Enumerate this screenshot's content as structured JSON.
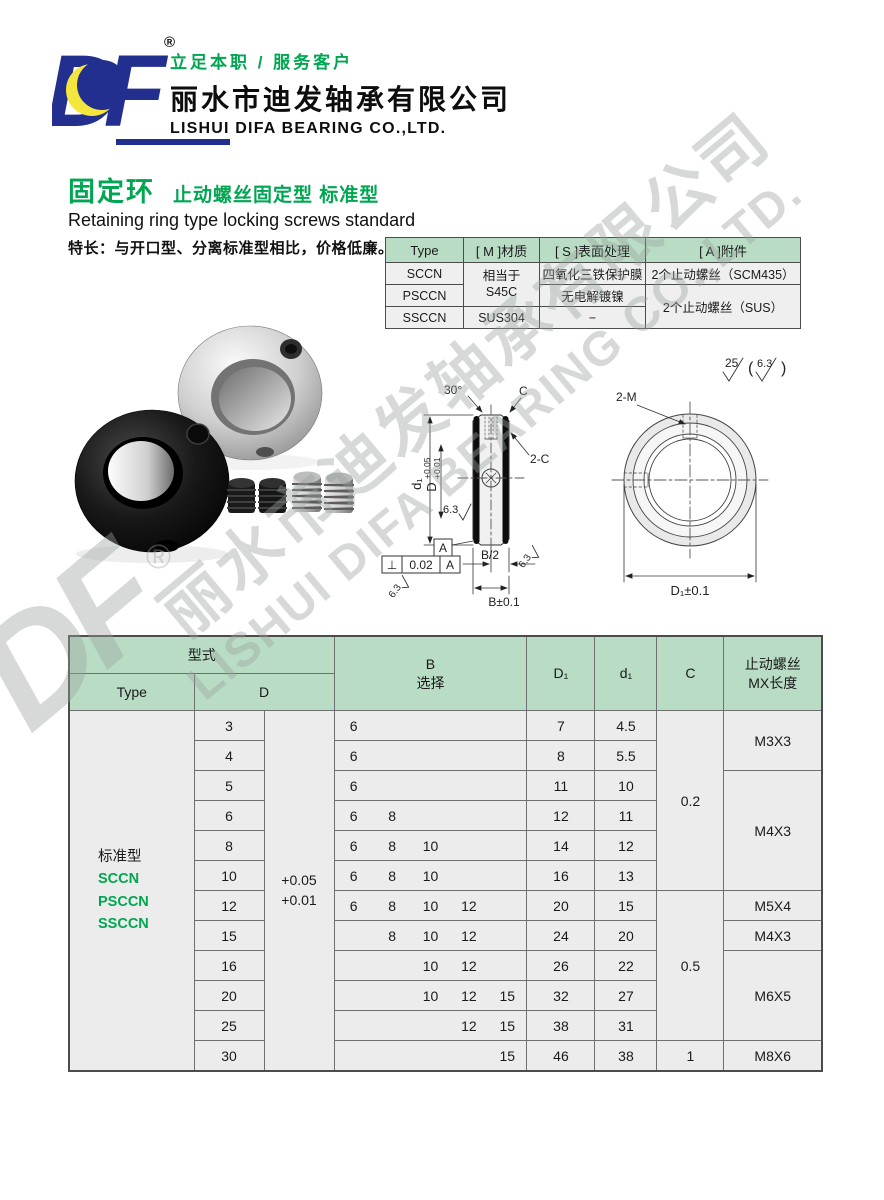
{
  "header": {
    "registered": "®",
    "slogan": "立足本职 / 服务客户",
    "company_cn": "丽水市迪发轴承有限公司",
    "company_en": "LISHUI DIFA BEARING CO.,LTD.",
    "logo_text": "DF"
  },
  "title": {
    "main": "固定环",
    "sub": "止动螺丝固定型  标准型",
    "english": "Retaining ring type locking screws standard",
    "feature": "特长：与开口型、分离标准型相比，价格低廉。"
  },
  "spec_table": {
    "headers": [
      "Type",
      "[ M ]材质",
      "[ S ]表面处理",
      "[ A ]附件"
    ],
    "types": [
      "SCCN",
      "PSCCN",
      "SSCCN"
    ],
    "material_s45c_line1": "相当于",
    "material_s45c_line2": "S45C",
    "material_sus": "SUS304",
    "surface_sccn": "四氧化三铁保护膜",
    "surface_psccn": "无电解镀镍",
    "surface_ssccn": "−",
    "accessory_sccn": "2个止动螺丝（SCM435）",
    "accessory_sus": "2个止动螺丝（SUS）"
  },
  "drawing": {
    "labels": {
      "angle": "30°",
      "c": "C",
      "two_c": "2-C",
      "d1_small": "d₁",
      "d_cap": "D",
      "tol_top": "+0.05",
      "tol_bottom": "+0.01",
      "roughness_63": "6.3",
      "datum": "A",
      "perp": "⊥",
      "perp_tol": "0.02",
      "b_half": "B/2",
      "b_tol": "B±0.1",
      "two_m": "2-M",
      "d1_tol": "D₁±0.1",
      "roughness_25": "25",
      "paren_open": "(",
      "paren_close": ")"
    }
  },
  "main_table": {
    "header": {
      "model": "型式",
      "type": "Type",
      "d": "D",
      "b1": "B",
      "b2": "选择",
      "d1": "D₁",
      "d1s": "d₁",
      "c": "C",
      "screw1": "止动螺丝",
      "screw2": "MX长度"
    },
    "type_cell": {
      "label": "标准型",
      "models": [
        "SCCN",
        "PSCCN",
        "SSCCN"
      ]
    },
    "tolerance": [
      "+0.05",
      "+0.01"
    ],
    "rows": [
      {
        "d": "3",
        "b": [
          "6",
          "",
          "",
          "",
          ""
        ],
        "d1": "7",
        "d1s": "4.5",
        "c": {
          "v": "0.2",
          "span": 6
        },
        "screw": {
          "v": "M3X3",
          "span": 2
        }
      },
      {
        "d": "4",
        "b": [
          "6",
          "",
          "",
          "",
          ""
        ],
        "d1": "8",
        "d1s": "5.5"
      },
      {
        "d": "5",
        "b": [
          "6",
          "",
          "",
          "",
          ""
        ],
        "d1": "11",
        "d1s": "10",
        "screw": {
          "v": "M4X3",
          "span": 4
        }
      },
      {
        "d": "6",
        "b": [
          "6",
          "8",
          "",
          "",
          ""
        ],
        "d1": "12",
        "d1s": "11"
      },
      {
        "d": "8",
        "b": [
          "6",
          "8",
          "10",
          "",
          ""
        ],
        "d1": "14",
        "d1s": "12"
      },
      {
        "d": "10",
        "b": [
          "6",
          "8",
          "10",
          "",
          ""
        ],
        "d1": "16",
        "d1s": "13"
      },
      {
        "d": "12",
        "b": [
          "6",
          "8",
          "10",
          "12",
          ""
        ],
        "d1": "20",
        "d1s": "15",
        "c": {
          "v": "0.5",
          "span": 5
        },
        "screw": {
          "v": "M5X4",
          "span": 1
        }
      },
      {
        "d": "15",
        "b": [
          "",
          "8",
          "10",
          "12",
          ""
        ],
        "d1": "24",
        "d1s": "20",
        "screw": {
          "v": "M4X3",
          "span": 1
        }
      },
      {
        "d": "16",
        "b": [
          "",
          "",
          "10",
          "12",
          ""
        ],
        "d1": "26",
        "d1s": "22",
        "screw": {
          "v": "M6X5",
          "span": 3
        }
      },
      {
        "d": "20",
        "b": [
          "",
          "",
          "10",
          "12",
          "15"
        ],
        "d1": "32",
        "d1s": "27"
      },
      {
        "d": "25",
        "b": [
          "",
          "",
          "",
          "12",
          "15"
        ],
        "d1": "38",
        "d1s": "31"
      },
      {
        "d": "30",
        "b": [
          "",
          "",
          "",
          "",
          "15"
        ],
        "d1": "46",
        "d1s": "38",
        "c": {
          "v": "1",
          "span": 1
        },
        "screw": {
          "v": "M8X6",
          "span": 1
        }
      }
    ]
  },
  "watermark": {
    "line_cn": "丽水市迪发轴承有限公司",
    "line_en": "LISHUI DIFA BEARING CO.,LTD.",
    "logo": "DF",
    "registered": "®"
  },
  "colors": {
    "green": "#00a651",
    "logo_blue": "#232f8e",
    "logo_yellow": "#f4e63c",
    "table_header_green": "#b9dcc4",
    "cell_gray": "#ececec"
  }
}
